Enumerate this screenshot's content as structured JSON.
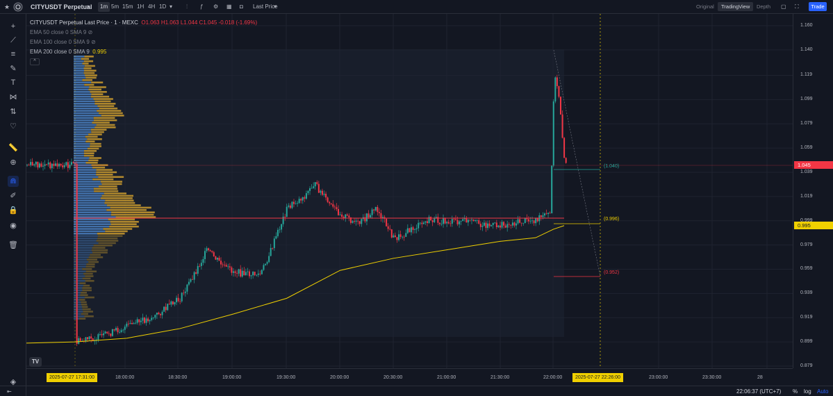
{
  "topbar": {
    "symbol": "CITYUSDT Perpetual",
    "timeframes": [
      "1m",
      "5m",
      "15m",
      "1H",
      "4H",
      "1D"
    ],
    "active_timeframe": "1m",
    "price_source": "Last Price",
    "views": [
      "Original",
      "TradingView",
      "Depth"
    ],
    "active_view": "TradingView",
    "trade_label": "Trade"
  },
  "legend": {
    "title": "CITYUSDT Perpetual Last Price · 1 · MEXC",
    "ohlc": "O1.063 H1.063 L1.044 C1.045 -0.018 (-1.69%)",
    "ema50": "EMA 50 close 0 SMA 9",
    "ema100": "EMA 100 close 0 SMA 9",
    "ema200": "EMA 200 close 0 SMA 9",
    "ema200_value": "0.995"
  },
  "price_axis": {
    "ticks": [
      "1.160",
      "1.140",
      "1.119",
      "1.099",
      "1.079",
      "1.059",
      "1.039",
      "1.019",
      "0.999",
      "0.979",
      "0.959",
      "0.939",
      "0.919",
      "0.899",
      "0.879"
    ],
    "last_price": "1.045",
    "ema_value": "0.995"
  },
  "fib_labels": {
    "upper": "(1.040)",
    "middle": "(0.996)",
    "lower": "(0.952)"
  },
  "time_axis": {
    "ticks": [
      "18:00:00",
      "18:30:00",
      "19:00:00",
      "19:30:00",
      "20:00:00",
      "20:30:00",
      "21:00:00",
      "21:30:00",
      "22:00:00",
      "23:00:00",
      "23:30:00",
      "28"
    ],
    "start_label": "2025-07-27   17:31:00",
    "end_label": "2025-07-27   22:26:00"
  },
  "bottom": {
    "clock": "22:06:37 (UTC+7)",
    "percent": "%",
    "log": "log",
    "auto": "Auto"
  },
  "colors": {
    "up": "#26a69a",
    "down": "#f23645",
    "ema": "#f0d000",
    "volume_profile_up": "#4a7fc0",
    "volume_profile_down": "#c99a2e",
    "accent": "#2962ff"
  },
  "chart_data": {
    "type": "candlestick",
    "title": "CITYUSDT Perpetual Last Price · 1 · MEXC",
    "ylim": [
      0.879,
      1.16
    ],
    "close_path_times": [
      "17:31",
      "17:45",
      "18:00",
      "18:15",
      "18:30",
      "18:45",
      "18:55",
      "19:05",
      "19:15",
      "19:20",
      "19:30",
      "19:40",
      "19:45",
      "19:50",
      "19:55",
      "20:00",
      "20:10",
      "20:20",
      "20:30",
      "20:40",
      "20:50",
      "21:00",
      "21:10",
      "21:20",
      "21:30",
      "21:40",
      "21:50",
      "21:58",
      "22:00",
      "22:03",
      "22:06"
    ],
    "close_path_values": [
      0.899,
      0.903,
      0.912,
      0.92,
      0.935,
      0.975,
      0.96,
      0.955,
      0.955,
      0.972,
      1.01,
      1.02,
      1.03,
      1.02,
      1.01,
      1.005,
      0.996,
      1.01,
      0.984,
      0.992,
      1.0,
      0.998,
      0.999,
      0.996,
      0.995,
      0.998,
      1.0,
      1.005,
      1.12,
      1.1,
      1.045
    ],
    "ema200_times": [
      "17:31",
      "18:00",
      "18:30",
      "19:00",
      "19:30",
      "20:00",
      "20:30",
      "21:00",
      "21:30",
      "21:50",
      "22:00",
      "22:06"
    ],
    "ema200_values": [
      0.899,
      0.902,
      0.91,
      0.922,
      0.935,
      0.958,
      0.968,
      0.975,
      0.982,
      0.985,
      0.992,
      0.995
    ]
  }
}
